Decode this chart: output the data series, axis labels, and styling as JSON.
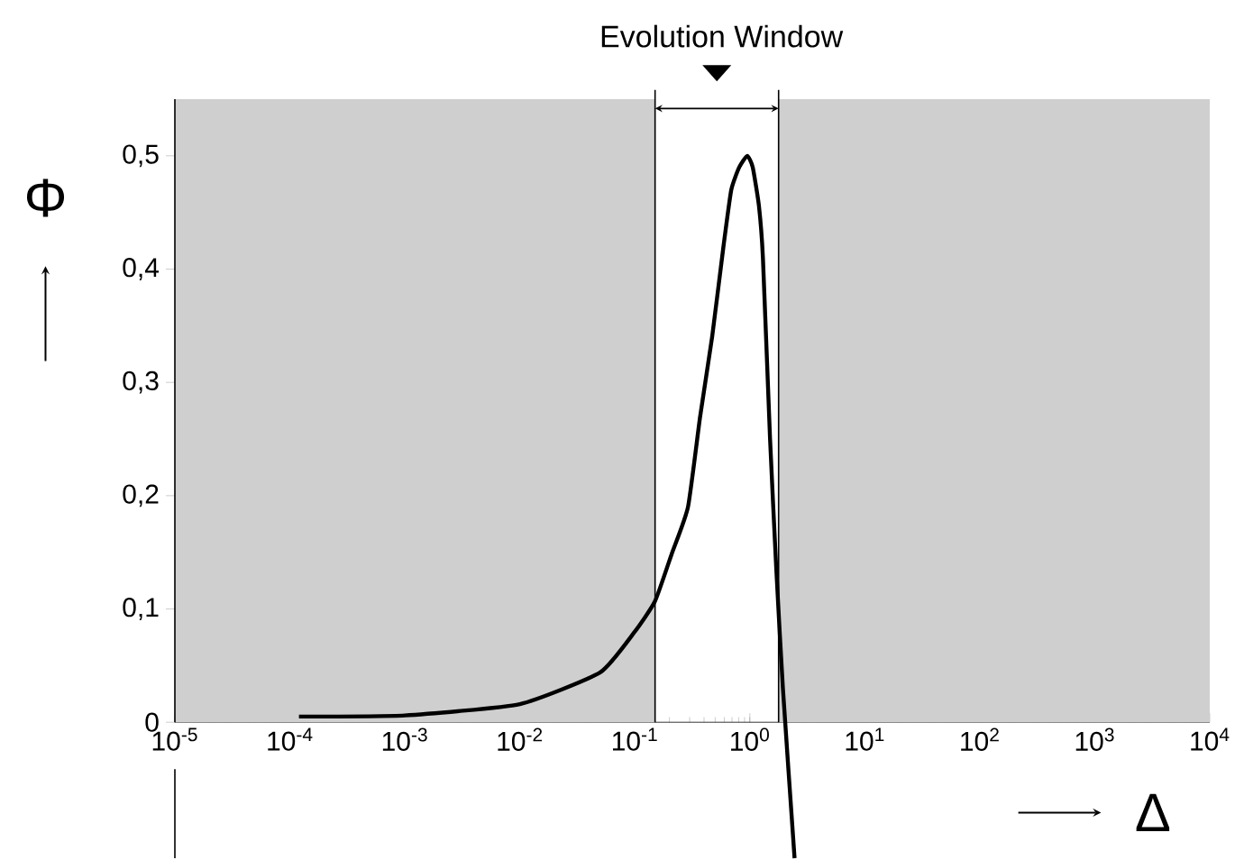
{
  "chart_data": {
    "type": "line",
    "title": "Evolution Window",
    "xlabel": "Δ",
    "ylabel": "Φ",
    "x": [
      0.00012,
      0.001,
      0.01,
      0.05,
      0.1,
      0.15,
      0.21,
      0.29,
      0.37,
      0.47,
      0.59,
      0.69,
      0.81,
      0.95,
      1.06,
      1.2,
      1.3,
      1.5,
      1.7,
      1.94,
      2.45
    ],
    "values": [
      0.005,
      0.006,
      0.016,
      0.044,
      0.08,
      0.107,
      0.149,
      0.19,
      0.27,
      0.34,
      0.42,
      0.47,
      0.49,
      0.5,
      0.49,
      0.456,
      0.41,
      0.25,
      0.135,
      0.03,
      -0.12
    ],
    "color": "#000000",
    "log": "x",
    "xlim": [
      1e-05,
      10000
    ],
    "ylim": [
      -0.12,
      0.55
    ],
    "xticks": [
      {
        "value": 1e-05,
        "label": "10$^{-5}$"
      },
      {
        "value": 0.0001,
        "label": "10$^{-4}$"
      },
      {
        "value": 0.001,
        "label": "10$^{-3}$"
      },
      {
        "value": 0.01,
        "label": "10$^{-2}$"
      },
      {
        "value": 0.1,
        "label": "10$^{-1}$"
      },
      {
        "value": 1,
        "label": "10$^{0}$"
      },
      {
        "value": 10,
        "label": "10$^{1}$"
      },
      {
        "value": 100,
        "label": "10$^{2}$"
      },
      {
        "value": 1000,
        "label": "10$^{3}$"
      },
      {
        "value": 10000,
        "label": "10$^{4}$"
      }
    ],
    "yticks": [
      0,
      {
        "value": 0.1,
        "label": "0,1"
      },
      {
        "value": 0.2,
        "label": "0,2"
      },
      {
        "value": 0.3,
        "label": "0,3"
      },
      {
        "value": 0.4,
        "label": "0,4"
      },
      {
        "value": 0.5,
        "label": "0,5"
      }
    ],
    "bands": [
      {
        "axis": "x",
        "from": 1e-05,
        "to": 0.15,
        "color": "#cfcfcf"
      },
      {
        "axis": "x",
        "from": 1.78,
        "to": 10000,
        "color": "#cfcfcf"
      }
    ],
    "ref_lines": [
      {
        "axis": "x",
        "value": 0.15,
        "color": "#000000"
      },
      {
        "axis": "x",
        "value": 1.78,
        "color": "#000000"
      }
    ],
    "marker": "none",
    "line_style": "solid"
  }
}
